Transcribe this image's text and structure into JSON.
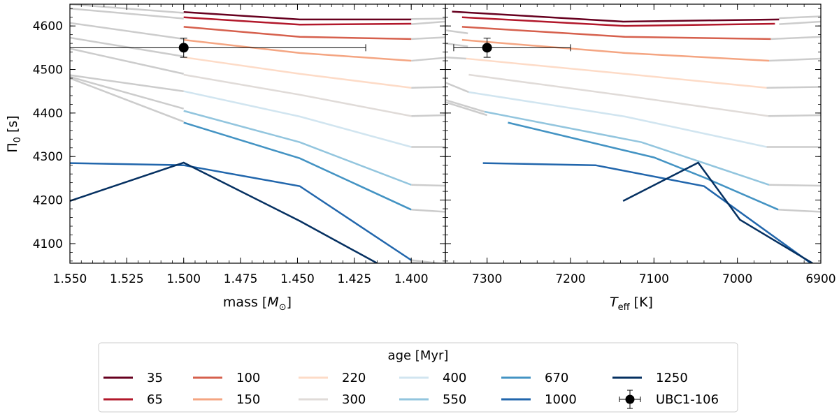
{
  "chart_data": [
    {
      "type": "line",
      "panel": "left",
      "xlabel_main": "mass [",
      "xlabel_sym": "M",
      "xlabel_sub": "⊙",
      "xlabel_end": "]",
      "ylabel_main": "Π",
      "ylabel_sub": "0",
      "ylabel_end": " [s]",
      "xlim": [
        1.55,
        1.385
      ],
      "ylim": [
        4055,
        4650
      ],
      "xticks": [
        1.55,
        1.525,
        1.5,
        1.475,
        1.45,
        1.425,
        1.4
      ],
      "xtick_labels": [
        "1.550",
        "1.525",
        "1.500",
        "1.475",
        "1.450",
        "1.425",
        "1.400"
      ],
      "yticks": [
        4100,
        4200,
        4300,
        4400,
        4500,
        4600
      ],
      "ytick_labels": [
        "4100",
        "4200",
        "4300",
        "4400",
        "4500",
        "4600"
      ],
      "grey_series": [
        {
          "points": [
            [
              1.55,
              4650
            ],
            [
              1.5,
              4630
            ]
          ]
        },
        {
          "points": [
            [
              1.55,
              4640
            ],
            [
              1.5,
              4617
            ]
          ]
        },
        {
          "points": [
            [
              1.55,
              4607
            ],
            [
              1.5,
              4570
            ]
          ]
        },
        {
          "points": [
            [
              1.55,
              4573
            ],
            [
              1.5,
              4530
            ]
          ]
        },
        {
          "points": [
            [
              1.55,
              4548
            ],
            [
              1.5,
              4490
            ]
          ]
        },
        {
          "points": [
            [
              1.55,
              4487
            ],
            [
              1.5,
              4450
            ]
          ]
        },
        {
          "points": [
            [
              1.55,
              4483
            ],
            [
              1.5,
              4410
            ]
          ]
        },
        {
          "points": [
            [
              1.55,
              4480
            ],
            [
              1.5,
              4380
            ]
          ]
        },
        {
          "points": [
            [
              1.4,
              4616
            ],
            [
              1.385,
              4617
            ]
          ]
        },
        {
          "points": [
            [
              1.4,
              4604
            ],
            [
              1.385,
              4610
            ]
          ]
        },
        {
          "points": [
            [
              1.4,
              4570
            ],
            [
              1.385,
              4574
            ]
          ]
        },
        {
          "points": [
            [
              1.4,
              4520
            ],
            [
              1.385,
              4527
            ]
          ]
        },
        {
          "points": [
            [
              1.4,
              4458
            ],
            [
              1.385,
              4460
            ]
          ]
        },
        {
          "points": [
            [
              1.4,
              4393
            ],
            [
              1.385,
              4395
            ]
          ]
        },
        {
          "points": [
            [
              1.4,
              4322
            ],
            [
              1.385,
              4322
            ]
          ]
        },
        {
          "points": [
            [
              1.4,
              4235
            ],
            [
              1.385,
              4233
            ]
          ]
        },
        {
          "points": [
            [
              1.4,
              4178
            ],
            [
              1.385,
              4173
            ]
          ]
        },
        {
          "points": [
            [
              1.4,
              4062
            ],
            [
              1.385,
              4053
            ]
          ]
        },
        {
          "points": [
            [
              1.4,
              4057
            ],
            [
              1.385,
              4050
            ]
          ]
        }
      ],
      "series": [
        {
          "name": "35",
          "color": "#67001f",
          "points": [
            [
              1.5,
              4632
            ],
            [
              1.449,
              4615
            ],
            [
              1.4,
              4615
            ]
          ]
        },
        {
          "name": "65",
          "color": "#b2182b",
          "points": [
            [
              1.5,
              4620
            ],
            [
              1.449,
              4603
            ],
            [
              1.4,
              4605
            ]
          ]
        },
        {
          "name": "100",
          "color": "#d6604d",
          "points": [
            [
              1.5,
              4598
            ],
            [
              1.449,
              4575
            ],
            [
              1.4,
              4570
            ]
          ]
        },
        {
          "name": "150",
          "color": "#f4a582",
          "points": [
            [
              1.5,
              4568
            ],
            [
              1.449,
              4538
            ],
            [
              1.4,
              4520
            ]
          ]
        },
        {
          "name": "220",
          "color": "#fddbc7",
          "points": [
            [
              1.5,
              4528
            ],
            [
              1.449,
              4490
            ],
            [
              1.4,
              4458
            ]
          ]
        },
        {
          "name": "300",
          "color": "#e0dbd8",
          "points": [
            [
              1.5,
              4488
            ],
            [
              1.449,
              4442
            ],
            [
              1.4,
              4393
            ]
          ]
        },
        {
          "name": "400",
          "color": "#d1e5f0",
          "points": [
            [
              1.5,
              4450
            ],
            [
              1.449,
              4392
            ],
            [
              1.4,
              4322
            ]
          ]
        },
        {
          "name": "550",
          "color": "#92c5de",
          "points": [
            [
              1.5,
              4405
            ],
            [
              1.449,
              4333
            ],
            [
              1.4,
              4235
            ]
          ]
        },
        {
          "name": "670",
          "color": "#4393c3",
          "points": [
            [
              1.5,
              4378
            ],
            [
              1.449,
              4296
            ],
            [
              1.4,
              4178
            ]
          ]
        },
        {
          "name": "1000",
          "color": "#2166ac",
          "points": [
            [
              1.55,
              4285
            ],
            [
              1.5,
              4280
            ],
            [
              1.449,
              4232
            ],
            [
              1.4,
              4062
            ]
          ]
        },
        {
          "name": "1250",
          "color": "#053061",
          "points": [
            [
              1.55,
              4198
            ],
            [
              1.5,
              4286
            ],
            [
              1.449,
              4152
            ],
            [
              1.415,
              4055
            ]
          ]
        }
      ],
      "observation": {
        "name": "UBC1-106",
        "x": 1.5,
        "y": 4550,
        "xerr_low": 0.05,
        "xerr_high": 0.08,
        "yerr": 22
      }
    },
    {
      "type": "line",
      "panel": "right",
      "xlabel_main": "T",
      "xlabel_sub": "eff",
      "xlabel_end": " [K]",
      "xlim": [
        7350,
        6900
      ],
      "ylim": [
        4055,
        4650
      ],
      "xticks": [
        7300,
        7200,
        7100,
        7000,
        6900
      ],
      "xtick_labels": [
        "7300",
        "7200",
        "7100",
        "7000",
        "6900"
      ],
      "yticks": [
        4100,
        4200,
        4300,
        4400,
        4500,
        4600
      ],
      "grey_series": [
        {
          "points": [
            [
              7350,
              4590
            ],
            [
              7323,
              4583
            ]
          ]
        },
        {
          "points": [
            [
              7350,
              4560
            ],
            [
              7323,
              4553
            ]
          ]
        },
        {
          "points": [
            [
              7350,
              4528
            ],
            [
              7325,
              4525
            ]
          ]
        },
        {
          "points": [
            [
              7350,
              4470
            ],
            [
              7322,
              4448
            ]
          ]
        },
        {
          "points": [
            [
              7350,
              4430
            ],
            [
              7303,
              4403
            ]
          ]
        },
        {
          "points": [
            [
              7350,
              4425
            ],
            [
              7300,
              4395
            ]
          ]
        },
        {
          "points": [
            [
              6950,
              4618
            ],
            [
              6900,
              4622
            ]
          ]
        },
        {
          "points": [
            [
              6950,
              4604
            ],
            [
              6900,
              4610
            ]
          ]
        },
        {
          "points": [
            [
              6960,
              4570
            ],
            [
              6900,
              4575
            ]
          ]
        },
        {
          "points": [
            [
              6962,
              4520
            ],
            [
              6900,
              4525
            ]
          ]
        },
        {
          "points": [
            [
              6965,
              4458
            ],
            [
              6900,
              4460
            ]
          ]
        },
        {
          "points": [
            [
              6963,
              4393
            ],
            [
              6900,
              4395
            ]
          ]
        },
        {
          "points": [
            [
              6965,
              4322
            ],
            [
              6900,
              4322
            ]
          ]
        },
        {
          "points": [
            [
              6962,
              4235
            ],
            [
              6900,
              4233
            ]
          ]
        },
        {
          "points": [
            [
              6951,
              4178
            ],
            [
              6900,
              4173
            ]
          ]
        }
      ],
      "series": [
        {
          "name": "35",
          "color": "#67001f",
          "points": [
            [
              7342,
              4633
            ],
            [
              7137,
              4610
            ],
            [
              6950,
              4615
            ]
          ]
        },
        {
          "name": "65",
          "color": "#b2182b",
          "points": [
            [
              7330,
              4620
            ],
            [
              7135,
              4600
            ],
            [
              6955,
              4605
            ]
          ]
        },
        {
          "name": "100",
          "color": "#d6604d",
          "points": [
            [
              7330,
              4598
            ],
            [
              7135,
              4575
            ],
            [
              6960,
              4570
            ]
          ]
        },
        {
          "name": "150",
          "color": "#f4a582",
          "points": [
            [
              7330,
              4568
            ],
            [
              7135,
              4538
            ],
            [
              6962,
              4520
            ]
          ]
        },
        {
          "name": "220",
          "color": "#fddbc7",
          "points": [
            [
              7325,
              4525
            ],
            [
              7135,
              4490
            ],
            [
              6965,
              4458
            ]
          ]
        },
        {
          "name": "300",
          "color": "#e0dbd8",
          "points": [
            [
              7322,
              4488
            ],
            [
              7135,
              4440
            ],
            [
              6963,
              4393
            ]
          ]
        },
        {
          "name": "400",
          "color": "#d1e5f0",
          "points": [
            [
              7322,
              4448
            ],
            [
              7135,
              4392
            ],
            [
              6965,
              4322
            ]
          ]
        },
        {
          "name": "550",
          "color": "#92c5de",
          "points": [
            [
              7303,
              4403
            ],
            [
              7115,
              4333
            ],
            [
              7040,
              4285
            ],
            [
              6962,
              4235
            ]
          ]
        },
        {
          "name": "670",
          "color": "#4393c3",
          "points": [
            [
              7275,
              4378
            ],
            [
              7100,
              4298
            ],
            [
              7040,
              4252
            ],
            [
              6951,
              4178
            ]
          ]
        },
        {
          "name": "1000",
          "color": "#2166ac",
          "points": [
            [
              7305,
              4285
            ],
            [
              7170,
              4280
            ],
            [
              7040,
              4232
            ],
            [
              6912,
              4055
            ]
          ]
        },
        {
          "name": "1250",
          "color": "#053061",
          "points": [
            [
              7137,
              4198
            ],
            [
              7047,
              4286
            ],
            [
              6997,
              4155
            ],
            [
              6910,
              4055
            ]
          ]
        }
      ],
      "observation": {
        "name": "UBC1-106",
        "x": 7300,
        "y": 4550,
        "xerr_low": 40,
        "xerr_high": 100,
        "yerr": 22
      }
    }
  ],
  "legend": {
    "title": "age [Myr]",
    "entries": [
      {
        "label": "35",
        "color": "#67001f"
      },
      {
        "label": "65",
        "color": "#b2182b"
      },
      {
        "label": "100",
        "color": "#d6604d"
      },
      {
        "label": "150",
        "color": "#f4a582"
      },
      {
        "label": "220",
        "color": "#fddbc7"
      },
      {
        "label": "300",
        "color": "#e0dbd8"
      },
      {
        "label": "400",
        "color": "#d1e5f0"
      },
      {
        "label": "550",
        "color": "#92c5de"
      },
      {
        "label": "670",
        "color": "#4393c3"
      },
      {
        "label": "1000",
        "color": "#2166ac"
      },
      {
        "label": "1250",
        "color": "#053061"
      },
      {
        "label": "UBC1-106",
        "marker": "errorbar-point",
        "color": "#000000"
      }
    ]
  },
  "colors": {
    "grey_track": "#cccccc",
    "axes": "#000000"
  }
}
